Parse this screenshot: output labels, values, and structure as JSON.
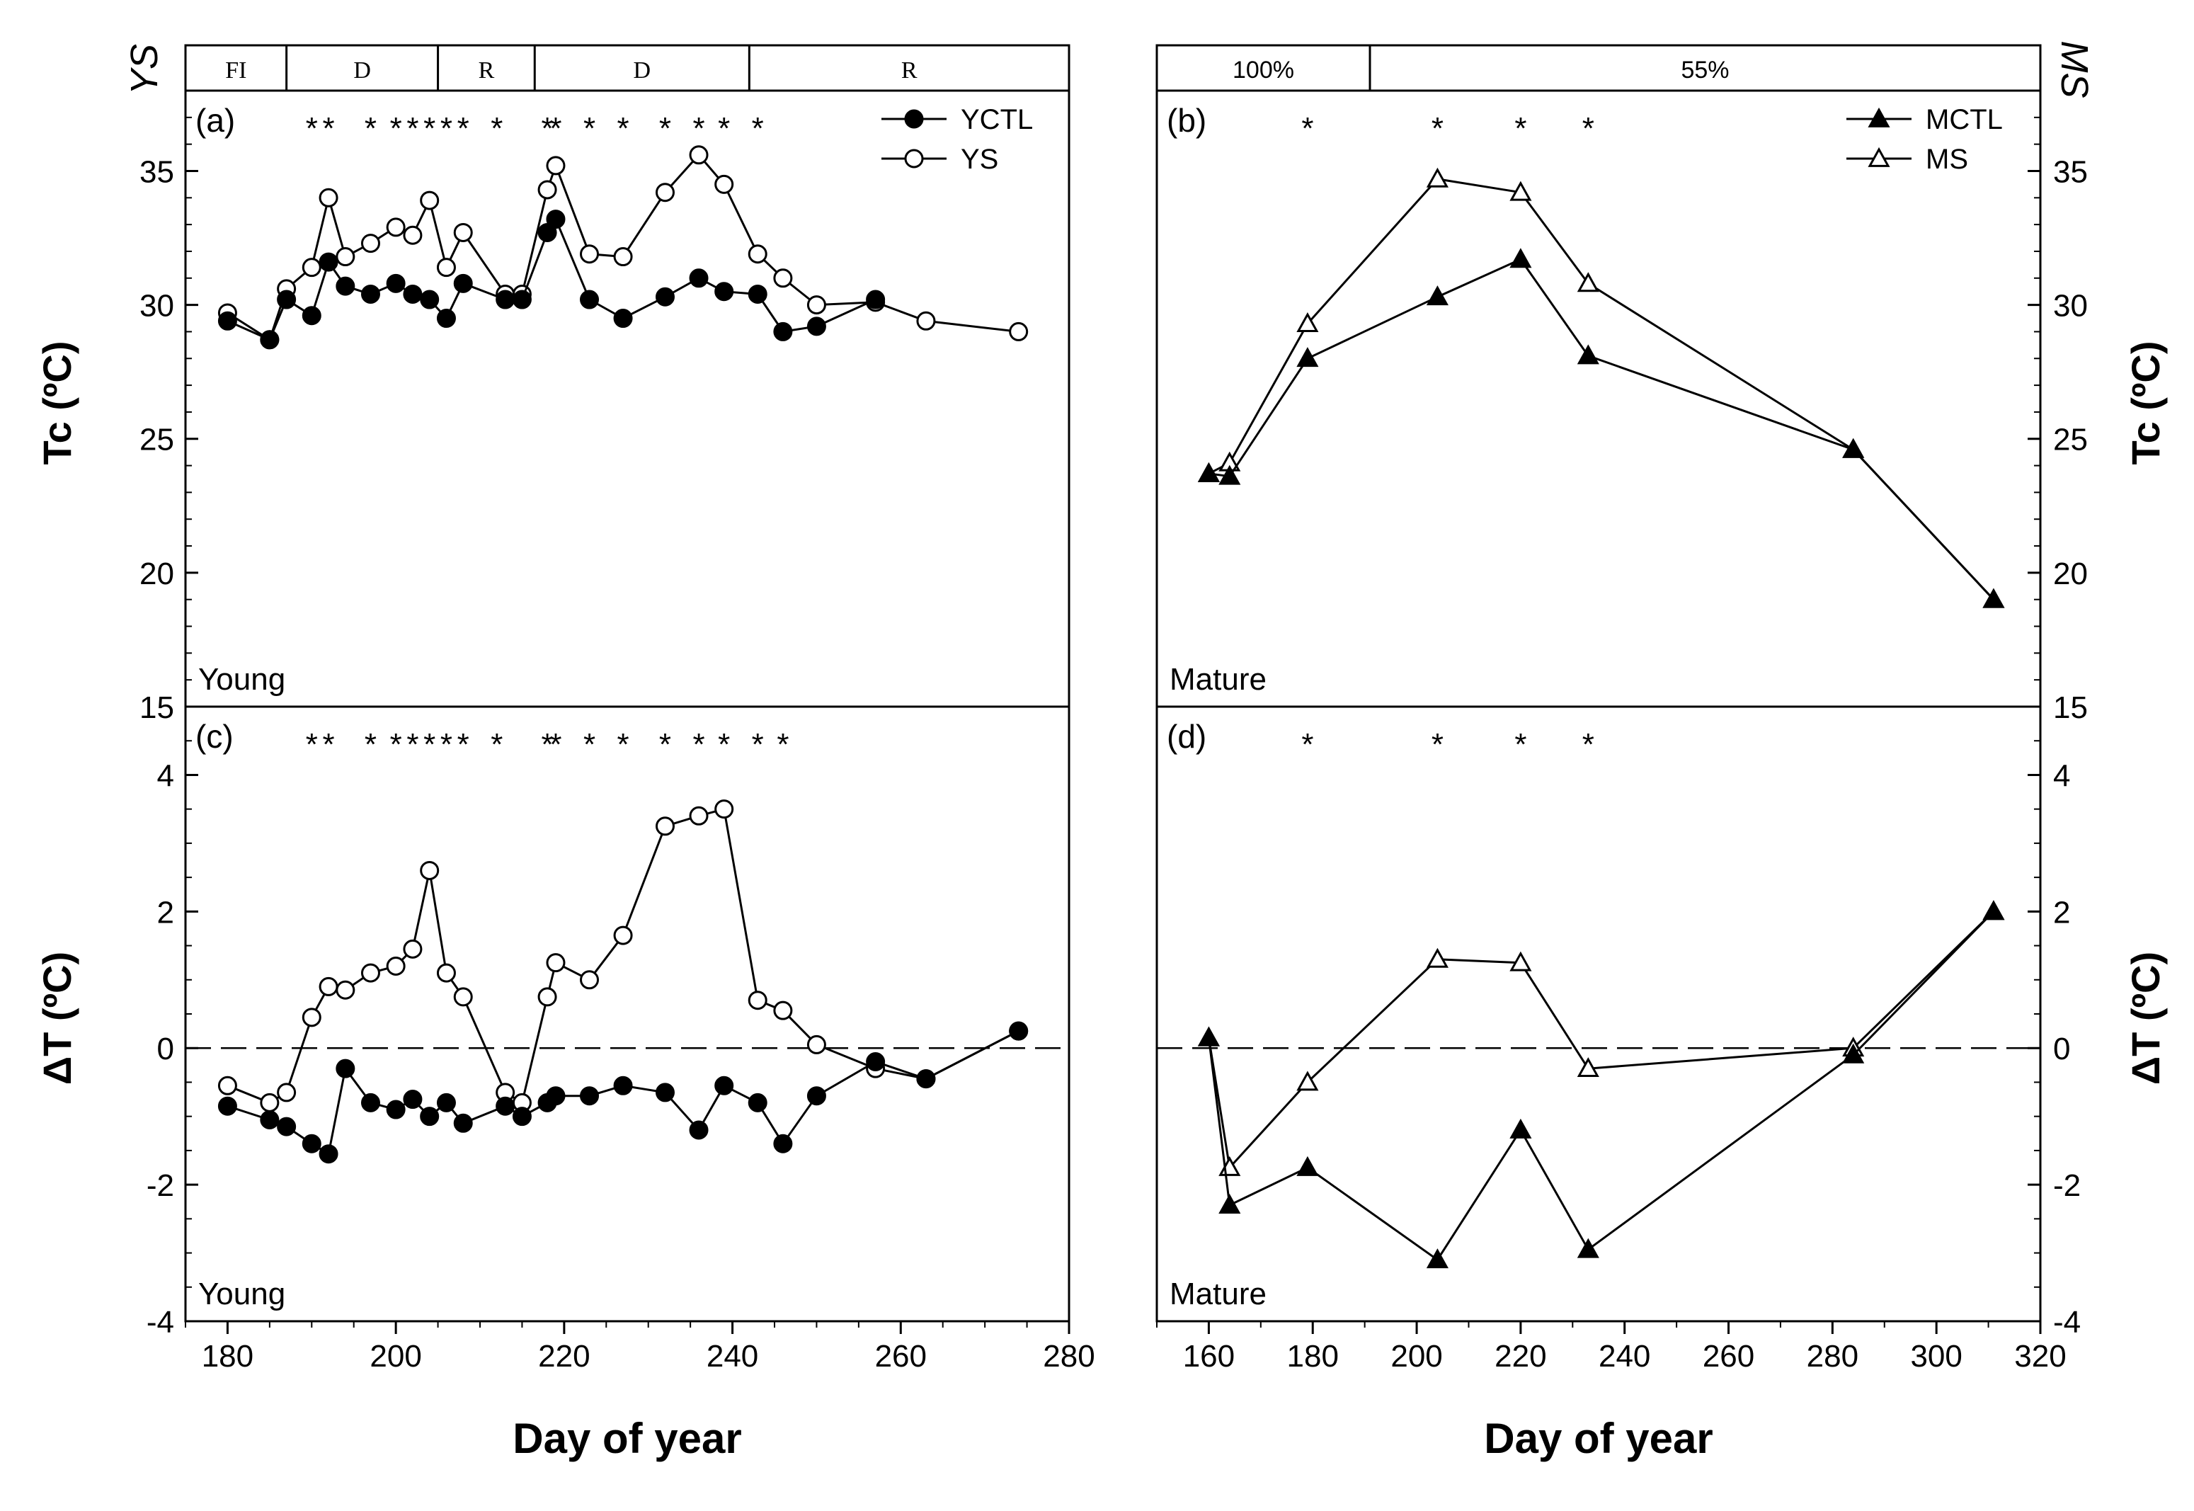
{
  "chart_data": {
    "type": "line",
    "axes": {
      "tc_ylabel": "Tc (ºC)",
      "dt_ylabel": "ΔT (ºC)",
      "xlabel": "Day of year",
      "left_stripe_label": "YS",
      "right_stripe_label": "MS",
      "tc_ylim": [
        15,
        38
      ],
      "dt_ylim": [
        -4,
        5
      ],
      "tc_yticks": [
        "15",
        "20",
        "25",
        "30",
        "35"
      ],
      "dt_yticks": [
        "-4",
        "-2",
        "0",
        "2",
        "4"
      ],
      "left_xlim": [
        175,
        280
      ],
      "left_xticks": [
        "180",
        "200",
        "220",
        "240",
        "260",
        "280"
      ],
      "right_xlim": [
        150,
        320
      ],
      "right_xticks": [
        "160",
        "180",
        "200",
        "220",
        "240",
        "260",
        "280",
        "300",
        "320"
      ]
    },
    "stripes": {
      "left": [
        {
          "label": "FI",
          "start": 175,
          "end": 187
        },
        {
          "label": "D",
          "start": 187,
          "end": 205
        },
        {
          "label": "R",
          "start": 205,
          "end": 216.5
        },
        {
          "label": "D",
          "start": 216.5,
          "end": 242
        },
        {
          "label": "R",
          "start": 242,
          "end": 280
        }
      ],
      "right": [
        {
          "label": "100%",
          "start": 150,
          "end": 191
        },
        {
          "label": "55%",
          "start": 191,
          "end": 320
        }
      ]
    },
    "panels": [
      {
        "id": "a",
        "label": "(a)",
        "caption": "Young",
        "series": [
          {
            "name": "YCTL",
            "marker": "circle-filled",
            "x": [
              180,
              185,
              187,
              190,
              192,
              194,
              197,
              200,
              202,
              204,
              206,
              208,
              213,
              215,
              218,
              219,
              223,
              227,
              232,
              236,
              239,
              243,
              246,
              250,
              257
            ],
            "y": [
              29.4,
              28.7,
              30.2,
              29.6,
              31.6,
              30.7,
              30.4,
              30.8,
              30.4,
              30.2,
              29.5,
              30.8,
              30.2,
              30.2,
              32.7,
              33.2,
              30.2,
              29.5,
              30.3,
              31.0,
              30.5,
              30.4,
              29.0,
              29.2,
              30.2
            ]
          },
          {
            "name": "YS",
            "marker": "circle-open",
            "x": [
              180,
              185,
              187,
              190,
              192,
              194,
              197,
              200,
              202,
              204,
              206,
              208,
              213,
              215,
              218,
              219,
              223,
              227,
              232,
              236,
              239,
              243,
              246,
              250,
              257,
              263,
              274
            ],
            "y": [
              29.7,
              28.7,
              30.6,
              31.4,
              34.0,
              31.8,
              32.3,
              32.9,
              32.6,
              33.9,
              31.4,
              32.7,
              30.4,
              30.4,
              34.3,
              35.2,
              31.9,
              31.8,
              34.2,
              35.6,
              34.5,
              31.9,
              31.0,
              30.0,
              30.1,
              29.4,
              29.0
            ]
          }
        ],
        "sig_days": [
          190,
          192,
          197,
          200,
          202,
          204,
          206,
          208,
          212,
          218,
          219,
          223,
          227,
          232,
          236,
          239,
          243
        ]
      },
      {
        "id": "b",
        "label": "(b)",
        "caption": "Mature",
        "series": [
          {
            "name": "MCTL",
            "marker": "triangle-filled",
            "x": [
              160,
              164,
              179,
              204,
              220,
              233,
              284,
              311
            ],
            "y": [
              23.7,
              23.6,
              28.0,
              30.3,
              31.7,
              28.1,
              24.6,
              19.0
            ]
          },
          {
            "name": "MS",
            "marker": "triangle-open",
            "x": [
              160,
              164,
              179,
              204,
              220,
              233,
              284,
              311
            ],
            "y": [
              23.7,
              24.1,
              29.3,
              34.7,
              34.2,
              30.8,
              24.6,
              19.0
            ]
          }
        ],
        "sig_days": [
          179,
          204,
          220,
          233
        ]
      },
      {
        "id": "c",
        "label": "(c)",
        "caption": "Young",
        "series": [
          {
            "name": "YCTL",
            "marker": "circle-filled",
            "x": [
              180,
              185,
              187,
              190,
              192,
              194,
              197,
              200,
              202,
              204,
              206,
              208,
              213,
              215,
              218,
              219,
              223,
              227,
              232,
              236,
              239,
              243,
              246,
              250,
              257,
              263,
              274
            ],
            "y": [
              -0.85,
              -1.05,
              -1.15,
              -1.4,
              -1.55,
              -0.3,
              -0.8,
              -0.9,
              -0.75,
              -1.0,
              -0.8,
              -1.1,
              -0.85,
              -1.0,
              -0.8,
              -0.7,
              -0.7,
              -0.55,
              -0.65,
              -1.2,
              -0.55,
              -0.8,
              -1.4,
              -0.7,
              -0.2,
              -0.45,
              0.25
            ]
          },
          {
            "name": "YS",
            "marker": "circle-open",
            "x": [
              180,
              185,
              187,
              190,
              192,
              194,
              197,
              200,
              202,
              204,
              206,
              208,
              213,
              215,
              218,
              219,
              223,
              227,
              232,
              236,
              239,
              243,
              246,
              250,
              257,
              263,
              274
            ],
            "y": [
              -0.55,
              -0.8,
              -0.65,
              0.45,
              0.9,
              0.85,
              1.1,
              1.2,
              1.45,
              2.6,
              1.1,
              0.75,
              -0.65,
              -0.8,
              0.75,
              1.25,
              1.0,
              1.65,
              3.25,
              3.4,
              3.5,
              0.7,
              0.55,
              0.05,
              -0.3,
              -0.45,
              0.25
            ]
          }
        ],
        "sig_days": [
          190,
          192,
          197,
          200,
          202,
          204,
          206,
          208,
          212,
          218,
          219,
          223,
          227,
          232,
          236,
          239,
          243,
          246
        ]
      },
      {
        "id": "d",
        "label": "(d)",
        "caption": "Mature",
        "series": [
          {
            "name": "MCTL",
            "marker": "triangle-filled",
            "x": [
              160,
              164,
              179,
              204,
              220,
              233,
              284,
              311
            ],
            "y": [
              0.15,
              -2.3,
              -1.75,
              -3.1,
              -1.2,
              -2.95,
              -0.1,
              2.0
            ]
          },
          {
            "name": "MS",
            "marker": "triangle-open",
            "x": [
              160,
              164,
              179,
              204,
              220,
              233,
              284,
              311
            ],
            "y": [
              0.15,
              -1.75,
              -0.5,
              1.3,
              1.25,
              -0.3,
              0.0,
              2.0
            ]
          }
        ],
        "sig_days": [
          179,
          204,
          220,
          233
        ]
      }
    ]
  }
}
